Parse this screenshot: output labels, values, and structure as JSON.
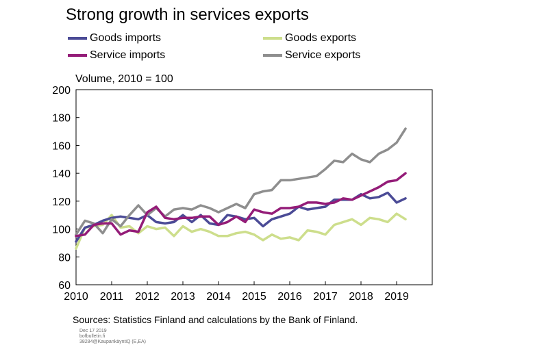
{
  "chart_data": {
    "type": "line",
    "title": "Strong growth  in services exports",
    "ylabel": "Volume, 2010 = 100",
    "xlabel": "",
    "ylim": [
      60,
      200
    ],
    "yticks": [
      60,
      80,
      100,
      120,
      140,
      160,
      180,
      200
    ],
    "xlim": [
      2010,
      2020
    ],
    "xticks": [
      2010,
      2011,
      2012,
      2013,
      2014,
      2015,
      2016,
      2017,
      2018,
      2019
    ],
    "grid": false,
    "legend": "top",
    "x": [
      2010.0,
      2010.25,
      2010.5,
      2010.75,
      2011.0,
      2011.25,
      2011.5,
      2011.75,
      2012.0,
      2012.25,
      2012.5,
      2012.75,
      2013.0,
      2013.25,
      2013.5,
      2013.75,
      2014.0,
      2014.25,
      2014.5,
      2014.75,
      2015.0,
      2015.25,
      2015.5,
      2015.75,
      2016.0,
      2016.25,
      2016.5,
      2016.75,
      2017.0,
      2017.25,
      2017.5,
      2017.75,
      2018.0,
      2018.25,
      2018.5,
      2018.75,
      2019.0,
      2019.25
    ],
    "series": [
      {
        "name": "Goods imports",
        "color": "#4b4b96",
        "values": [
          91,
          101,
          103,
          106,
          108,
          109,
          108,
          107,
          110,
          105,
          104,
          105,
          110,
          105,
          110,
          104,
          103,
          110,
          109,
          107,
          108,
          102,
          107,
          109,
          111,
          116,
          114,
          115,
          116,
          121,
          121,
          121,
          125,
          122,
          123,
          126,
          119,
          122
        ]
      },
      {
        "name": "Goods exports",
        "color": "#cdde8c",
        "values": [
          86,
          101,
          102,
          103,
          110,
          101,
          102,
          97,
          102,
          100,
          101,
          95,
          102,
          98,
          100,
          98,
          95,
          95,
          97,
          98,
          96,
          92,
          96,
          93,
          94,
          92,
          99,
          98,
          96,
          103,
          105,
          107,
          103,
          108,
          107,
          105,
          111,
          107
        ]
      },
      {
        "name": "Service imports",
        "color": "#941c78",
        "values": [
          95,
          96,
          103,
          104,
          104,
          96,
          99,
          98,
          112,
          116,
          108,
          107,
          108,
          108,
          109,
          109,
          103,
          105,
          109,
          105,
          114,
          112,
          111,
          115,
          115,
          116,
          119,
          119,
          118,
          119,
          122,
          121,
          124,
          127,
          130,
          134,
          135,
          140
        ]
      },
      {
        "name": "Service exports",
        "color": "#8e8e8e",
        "values": [
          96,
          106,
          104,
          97,
          107,
          102,
          110,
          117,
          110,
          115,
          109,
          114,
          115,
          114,
          117,
          115,
          112,
          115,
          118,
          115,
          125,
          127,
          128,
          135,
          135,
          136,
          137,
          138,
          143,
          149,
          148,
          154,
          150,
          148,
          154,
          157,
          162,
          172
        ]
      }
    ]
  },
  "source": "Sources: Statistics Finland and calculations by the Bank of Finland.",
  "footnotes": [
    "Dec 17 2019",
    "bofbulletin.fi",
    "38284@KaupankäyntiQ (E,EA)"
  ]
}
